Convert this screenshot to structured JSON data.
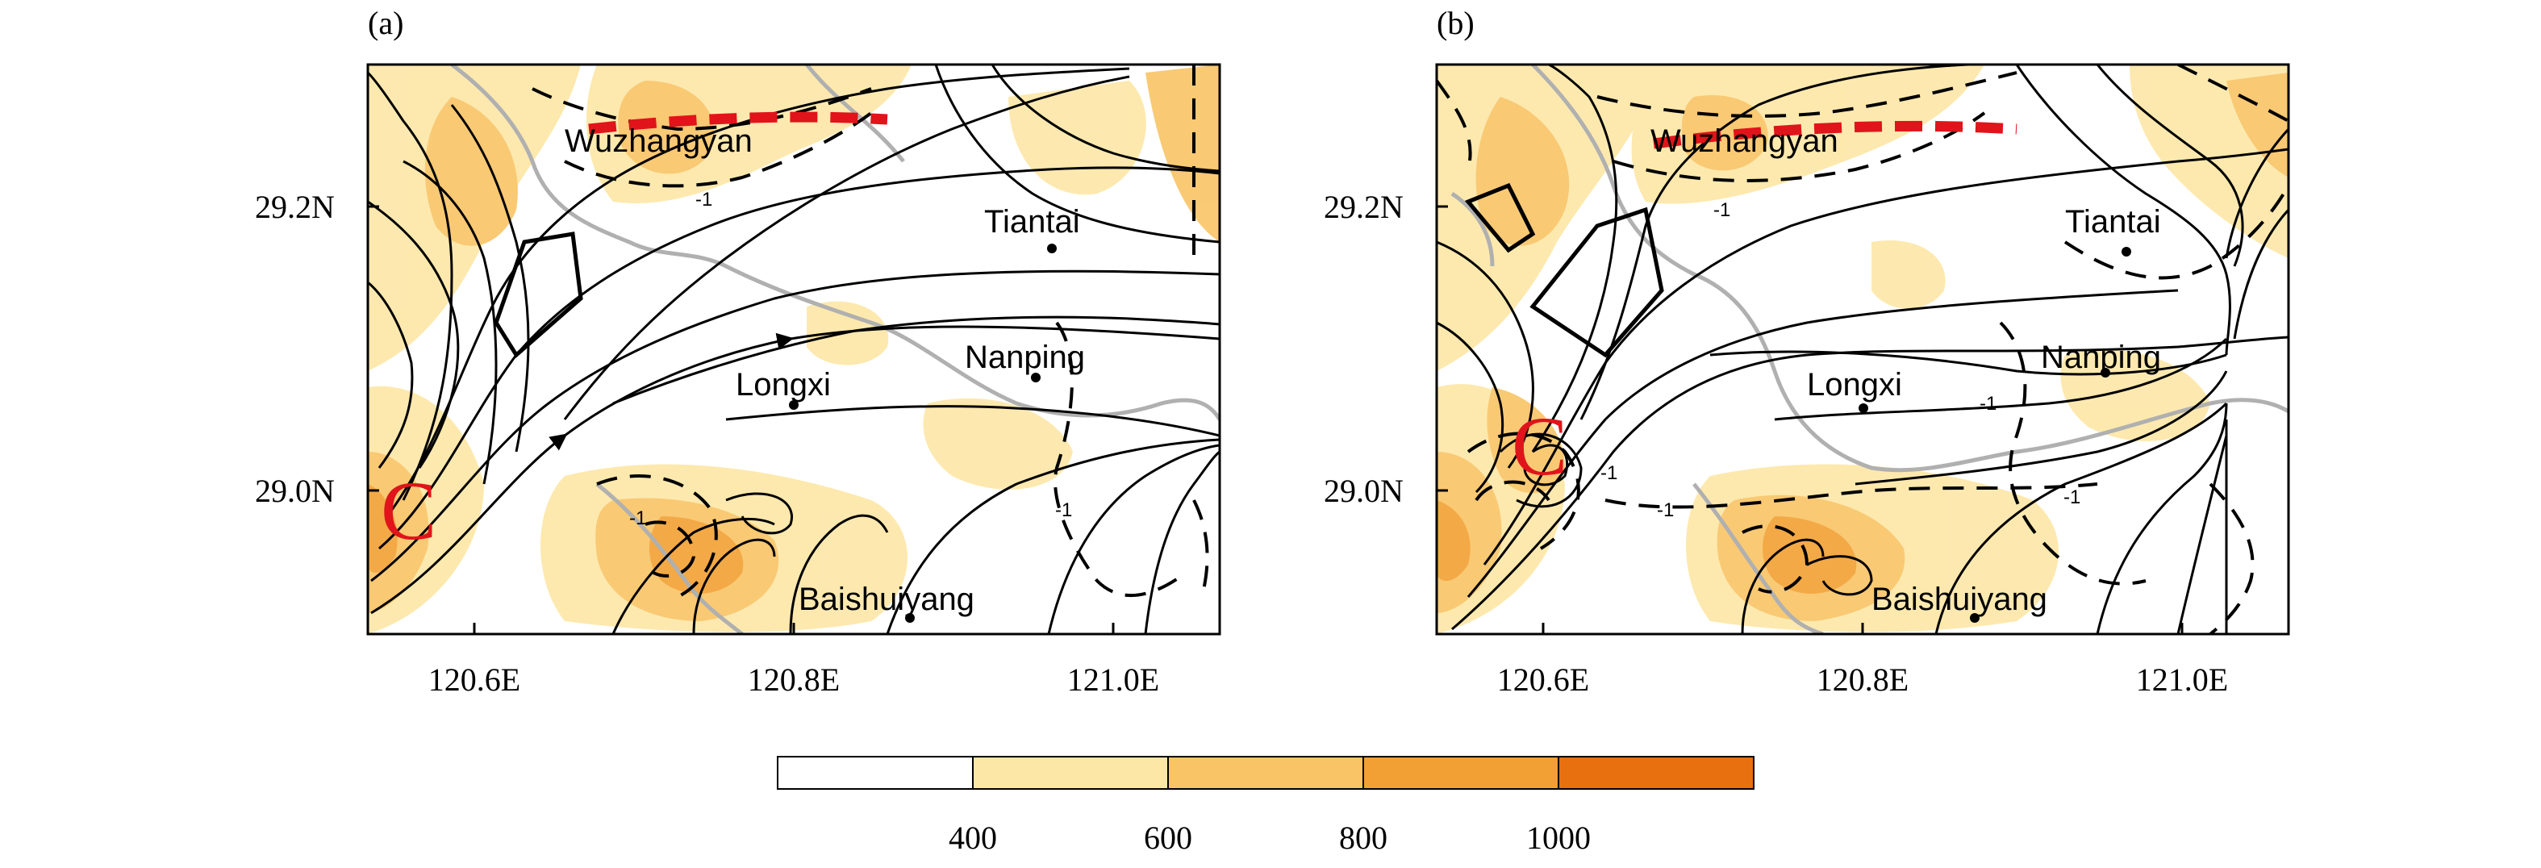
{
  "panels": [
    {
      "label": "(a)",
      "y_ticks": [
        "29.2N",
        "29.0N"
      ],
      "x_ticks": [
        "120.6E",
        "120.8E",
        "121.0E"
      ],
      "cyclone_marker": "C",
      "stations": [
        {
          "name": "Wuzhangyan",
          "lon": 120.69,
          "lat": 29.24
        },
        {
          "name": "Tiantai",
          "lon": 120.98,
          "lat": 29.17
        },
        {
          "name": "Nanping",
          "lon": 120.98,
          "lat": 29.08
        },
        {
          "name": "Longxi",
          "lon": 120.8,
          "lat": 29.06
        },
        {
          "name": "Baishuiyang",
          "lon": 120.88,
          "lat": 28.91
        }
      ],
      "contour_labels": [
        "-1",
        "-1",
        "-1"
      ]
    },
    {
      "label": "(b)",
      "y_ticks": [
        "29.2N",
        "29.0N"
      ],
      "x_ticks": [
        "120.6E",
        "120.8E",
        "121.0E"
      ],
      "cyclone_marker": "C",
      "stations": [
        {
          "name": "Wuzhangyan",
          "lon": 120.69,
          "lat": 29.24
        },
        {
          "name": "Tiantai",
          "lon": 120.98,
          "lat": 29.17
        },
        {
          "name": "Nanping",
          "lon": 120.98,
          "lat": 29.08
        },
        {
          "name": "Longxi",
          "lon": 120.8,
          "lat": 29.06
        },
        {
          "name": "Baishuiyang",
          "lon": 120.88,
          "lat": 28.91
        }
      ],
      "contour_labels": [
        "-1",
        "-1",
        "-1",
        "-1",
        "-1"
      ]
    }
  ],
  "colorbar": {
    "colors": [
      "#ffffff",
      "#fde7a6",
      "#f9c466",
      "#f2a033",
      "#e8700f"
    ],
    "tick_labels": [
      "400",
      "600",
      "800",
      "1000"
    ]
  },
  "colors": {
    "streamline": "#000000",
    "coastline": "#b0b0b0",
    "barrier_line": "#e0141a",
    "cyclone_marker": "#e0141a"
  }
}
